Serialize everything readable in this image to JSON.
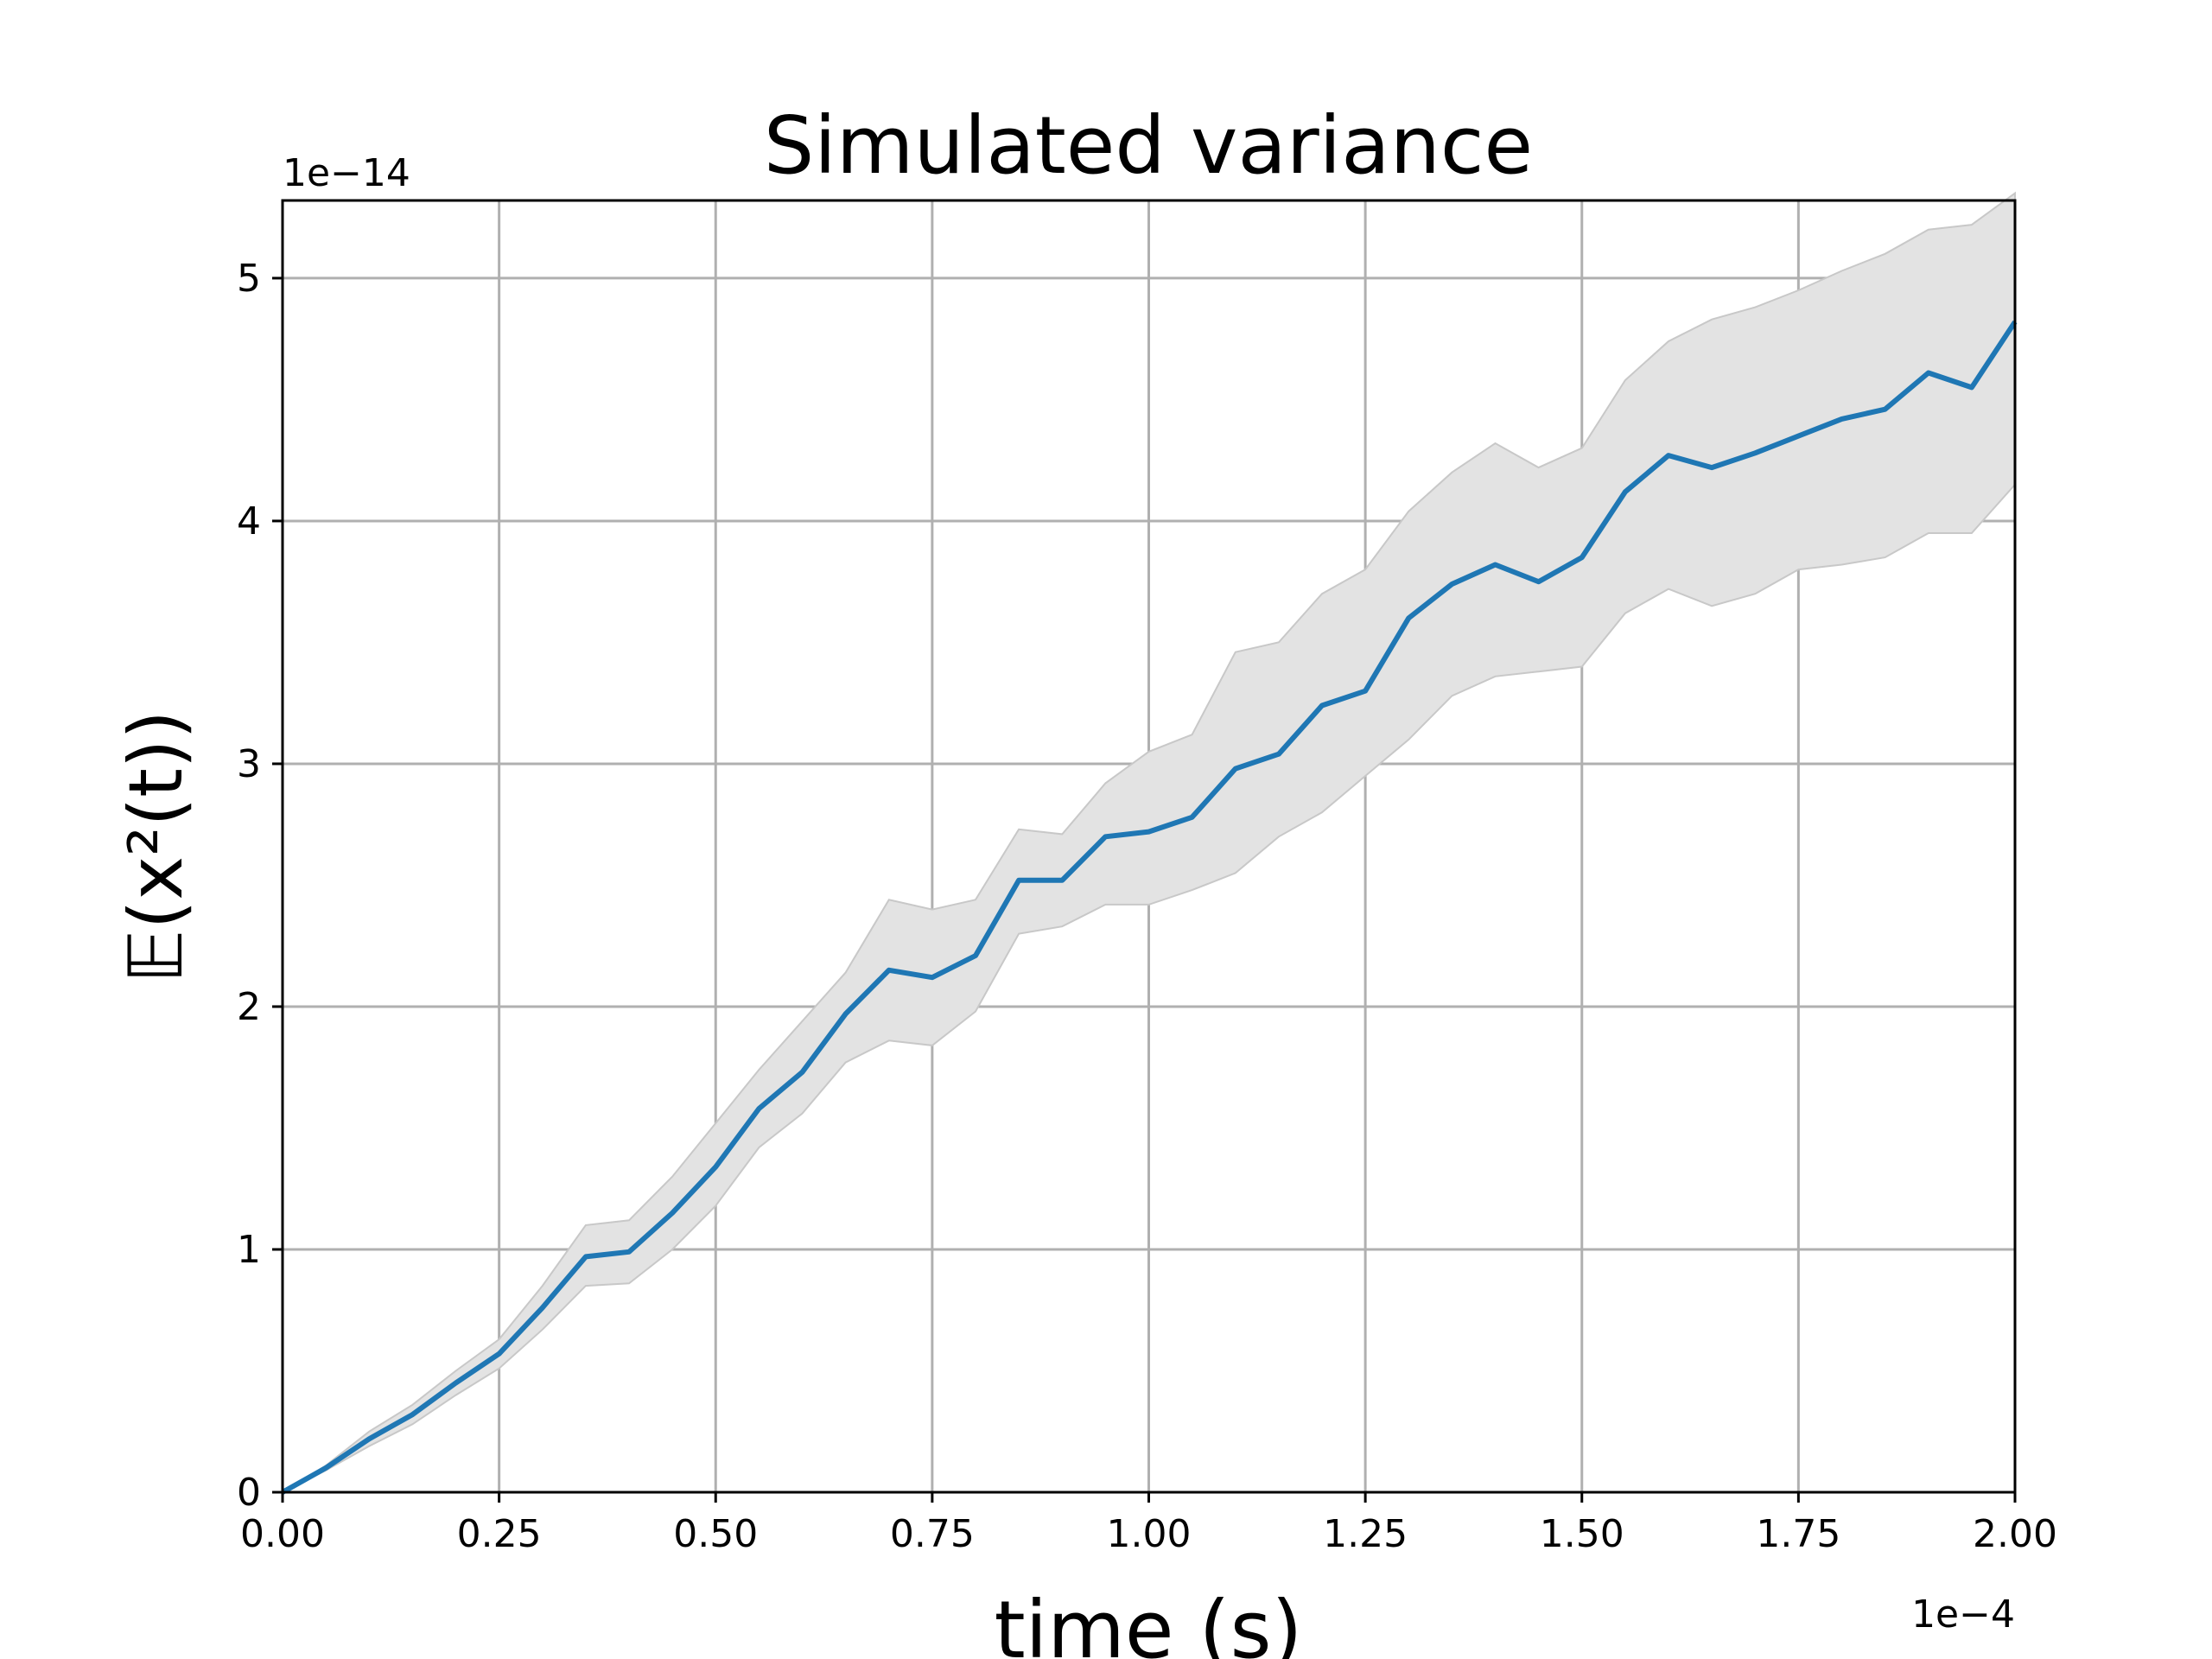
{
  "chart_data": {
    "type": "line",
    "title": "Simulated variance",
    "xlabel": "time (s)",
    "ylabel": "𝔼(x²(t))",
    "x_offset_label": "1e−4",
    "y_offset_label": "1e−14",
    "xlim": [
      0,
      2.0
    ],
    "ylim": [
      0,
      5.32
    ],
    "x_ticks": [
      "0.00",
      "0.25",
      "0.50",
      "0.75",
      "1.00",
      "1.25",
      "1.50",
      "1.75",
      "2.00"
    ],
    "x_tick_values": [
      0,
      0.25,
      0.5,
      0.75,
      1.0,
      1.25,
      1.5,
      1.75,
      2.0
    ],
    "y_ticks": [
      "0",
      "1",
      "2",
      "3",
      "4",
      "5"
    ],
    "y_tick_values": [
      0,
      1,
      2,
      3,
      4,
      5
    ],
    "grid": true,
    "colors": {
      "line": "#1f77b4",
      "band": "#e3e3e3",
      "band_edge": "#c8c8c8",
      "grid": "#b0b0b0"
    },
    "x": [
      0.0,
      0.05,
      0.1,
      0.15,
      0.2,
      0.25,
      0.3,
      0.35,
      0.4,
      0.45,
      0.5,
      0.55,
      0.6,
      0.65,
      0.7,
      0.75,
      0.8,
      0.85,
      0.9,
      0.95,
      1.0,
      1.05,
      1.1,
      1.15,
      1.2,
      1.25,
      1.3,
      1.35,
      1.4,
      1.45,
      1.5,
      1.55,
      1.6,
      1.65,
      1.7,
      1.75,
      1.8,
      1.85,
      1.9,
      1.95,
      2.0
    ],
    "series": [
      {
        "values": [
          0.0,
          0.1,
          0.22,
          0.32,
          0.45,
          0.57,
          0.76,
          0.97,
          0.99,
          1.15,
          1.34,
          1.58,
          1.73,
          1.97,
          2.15,
          2.12,
          2.21,
          2.52,
          2.52,
          2.7,
          2.72,
          2.78,
          2.98,
          3.04,
          3.24,
          3.3,
          3.6,
          3.74,
          3.82,
          3.75,
          3.85,
          4.12,
          4.27,
          4.22,
          4.28,
          4.35,
          4.42,
          4.46,
          4.61,
          4.55,
          4.82
        ]
      }
    ],
    "band": {
      "lower": [
        0.0,
        0.09,
        0.19,
        0.28,
        0.4,
        0.51,
        0.67,
        0.85,
        0.86,
        1.0,
        1.18,
        1.42,
        1.56,
        1.77,
        1.86,
        1.84,
        1.98,
        2.3,
        2.33,
        2.42,
        2.42,
        2.48,
        2.55,
        2.7,
        2.8,
        2.95,
        3.1,
        3.28,
        3.36,
        3.38,
        3.4,
        3.62,
        3.72,
        3.65,
        3.7,
        3.8,
        3.82,
        3.85,
        3.95,
        3.95,
        4.15
      ],
      "upper": [
        0.0,
        0.11,
        0.25,
        0.36,
        0.5,
        0.63,
        0.85,
        1.1,
        1.12,
        1.3,
        1.52,
        1.74,
        1.94,
        2.14,
        2.44,
        2.4,
        2.44,
        2.73,
        2.71,
        2.92,
        3.05,
        3.12,
        3.46,
        3.5,
        3.7,
        3.8,
        4.04,
        4.2,
        4.32,
        4.22,
        4.3,
        4.58,
        4.74,
        4.83,
        4.88,
        4.95,
        5.03,
        5.1,
        5.2,
        5.22,
        5.35
      ]
    }
  }
}
